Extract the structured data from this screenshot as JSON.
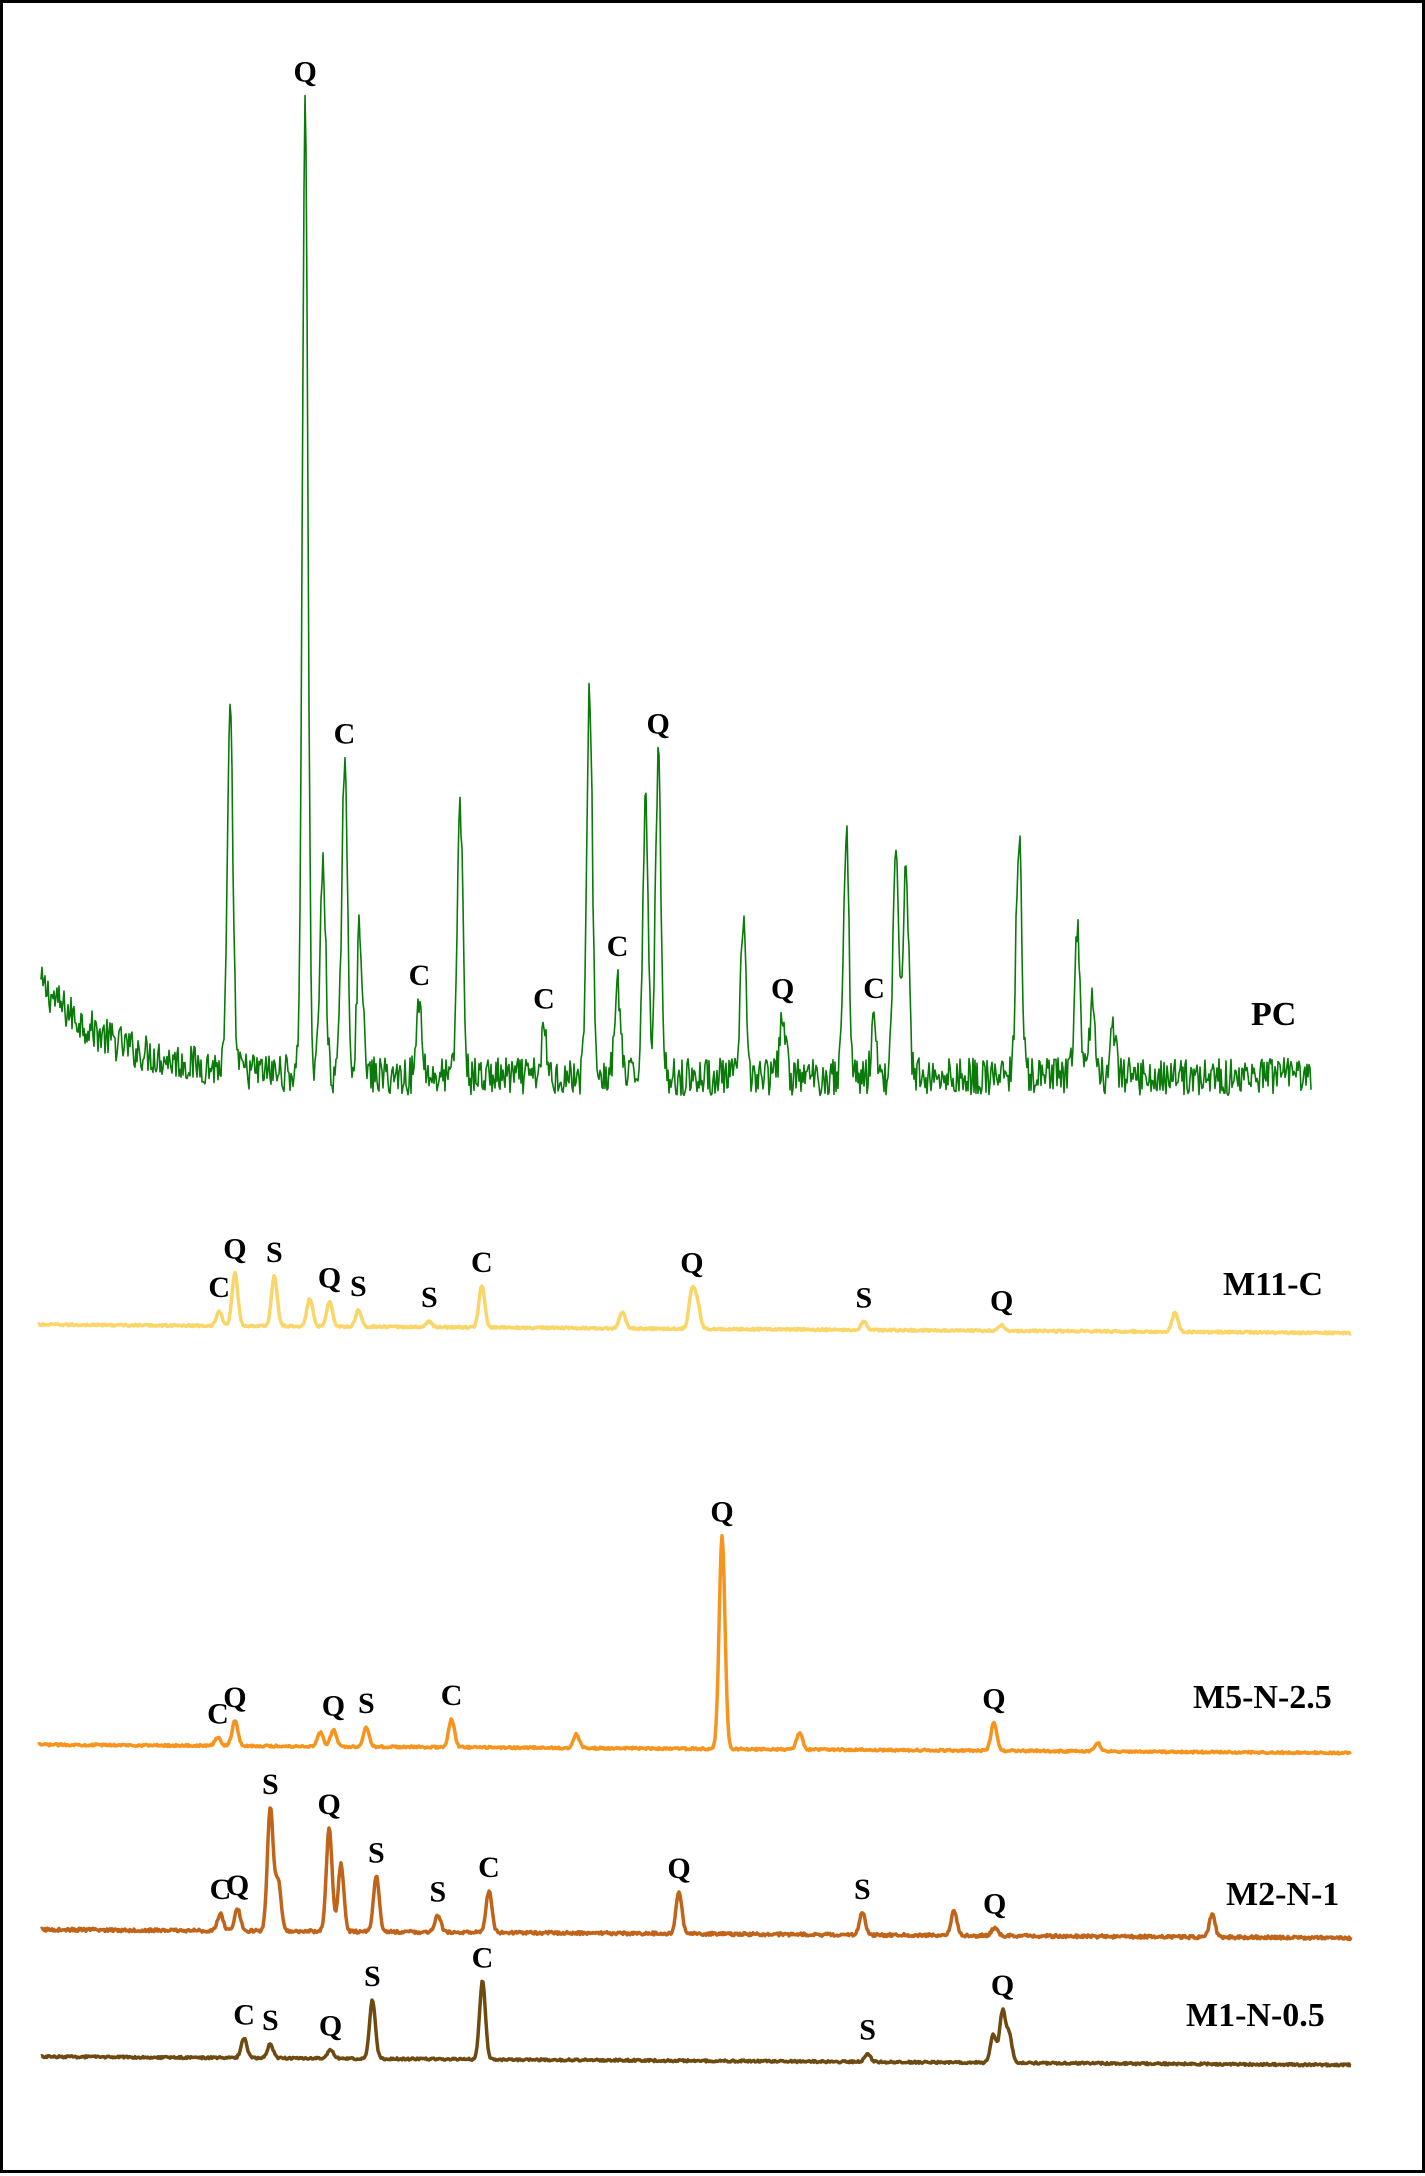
{
  "chart_data": {
    "type": "line",
    "title": "",
    "xlabel": "",
    "ylabel": "",
    "grid": false,
    "legend": "none",
    "x_units": "relative position across the pattern (0-1); no axis is printed",
    "y_units": "relative intensity above each trace's own baseline (0-1); no axis is printed",
    "series": [
      {
        "name": "PC",
        "color": "#0a7a0a",
        "background": "decaying",
        "noise": 0.5,
        "peaks": [
          {
            "x": 0.149,
            "h": 0.83,
            "label": ""
          },
          {
            "x": 0.208,
            "h": 2.3,
            "label": "Q"
          },
          {
            "x": 0.222,
            "h": 0.5,
            "label": ""
          },
          {
            "x": 0.239,
            "h": 0.75,
            "label": "C"
          },
          {
            "x": 0.251,
            "h": 0.35,
            "label": ""
          },
          {
            "x": 0.298,
            "h": 0.18,
            "label": "C"
          },
          {
            "x": 0.33,
            "h": 0.65,
            "label": ""
          },
          {
            "x": 0.396,
            "h": 0.1,
            "label": "C"
          },
          {
            "x": 0.432,
            "h": 0.92,
            "label": ""
          },
          {
            "x": 0.454,
            "h": 0.22,
            "label": "C"
          },
          {
            "x": 0.476,
            "h": 0.65,
            "label": ""
          },
          {
            "x": 0.486,
            "h": 0.75,
            "label": "Q"
          },
          {
            "x": 0.553,
            "h": 0.35,
            "label": ""
          },
          {
            "x": 0.584,
            "h": 0.15,
            "label": "Q"
          },
          {
            "x": 0.634,
            "h": 0.58,
            "label": ""
          },
          {
            "x": 0.656,
            "h": 0.12,
            "label": "C"
          },
          {
            "x": 0.673,
            "h": 0.55,
            "label": ""
          },
          {
            "x": 0.681,
            "h": 0.52,
            "label": ""
          },
          {
            "x": 0.77,
            "h": 0.58,
            "label": ""
          },
          {
            "x": 0.816,
            "h": 0.35,
            "label": ""
          },
          {
            "x": 0.828,
            "h": 0.18,
            "label": ""
          },
          {
            "x": 0.844,
            "h": 0.12,
            "label": ""
          }
        ]
      },
      {
        "name": "M11-C",
        "color": "#fad669",
        "background": "flat",
        "noise": 0.04,
        "peaks": [
          {
            "x": 0.138,
            "h": 0.05,
            "label": "C"
          },
          {
            "x": 0.15,
            "h": 0.19,
            "label": "Q"
          },
          {
            "x": 0.18,
            "h": 0.18,
            "label": "S"
          },
          {
            "x": 0.207,
            "h": 0.1,
            "label": ""
          },
          {
            "x": 0.222,
            "h": 0.09,
            "label": "Q"
          },
          {
            "x": 0.244,
            "h": 0.06,
            "label": "S"
          },
          {
            "x": 0.298,
            "h": 0.02,
            "label": "S"
          },
          {
            "x": 0.338,
            "h": 0.15,
            "label": "C"
          },
          {
            "x": 0.445,
            "h": 0.06,
            "label": ""
          },
          {
            "x": 0.498,
            "h": 0.13,
            "label": "Q"
          },
          {
            "x": 0.502,
            "h": 0.09,
            "label": ""
          },
          {
            "x": 0.629,
            "h": 0.03,
            "label": "S"
          },
          {
            "x": 0.734,
            "h": 0.02,
            "label": "Q"
          },
          {
            "x": 0.866,
            "h": 0.07,
            "label": ""
          }
        ]
      },
      {
        "name": "M5-N-2.5",
        "color": "#f7941d",
        "background": "flat",
        "noise": 0.04,
        "peaks": [
          {
            "x": 0.137,
            "h": 0.03,
            "label": "C"
          },
          {
            "x": 0.15,
            "h": 0.09,
            "label": "Q"
          },
          {
            "x": 0.215,
            "h": 0.05,
            "label": ""
          },
          {
            "x": 0.225,
            "h": 0.06,
            "label": "Q"
          },
          {
            "x": 0.25,
            "h": 0.07,
            "label": "S"
          },
          {
            "x": 0.315,
            "h": 0.1,
            "label": "C"
          },
          {
            "x": 0.41,
            "h": 0.05,
            "label": ""
          },
          {
            "x": 0.521,
            "h": 0.76,
            "label": "Q"
          },
          {
            "x": 0.58,
            "h": 0.06,
            "label": ""
          },
          {
            "x": 0.728,
            "h": 0.1,
            "label": "Q"
          },
          {
            "x": 0.807,
            "h": 0.03,
            "label": ""
          }
        ]
      },
      {
        "name": "M2-N-1",
        "color": "#c0641a",
        "background": "flat",
        "noise": 0.06,
        "peaks": [
          {
            "x": 0.137,
            "h": 0.06,
            "label": "C"
          },
          {
            "x": 0.15,
            "h": 0.08,
            "label": "Q"
          },
          {
            "x": 0.175,
            "h": 0.44,
            "label": "S"
          },
          {
            "x": 0.181,
            "h": 0.18,
            "label": ""
          },
          {
            "x": 0.22,
            "h": 0.37,
            "label": "Q"
          },
          {
            "x": 0.229,
            "h": 0.24,
            "label": ""
          },
          {
            "x": 0.256,
            "h": 0.2,
            "label": "S"
          },
          {
            "x": 0.303,
            "h": 0.06,
            "label": "S"
          },
          {
            "x": 0.342,
            "h": 0.15,
            "label": "C"
          },
          {
            "x": 0.487,
            "h": 0.15,
            "label": "Q"
          },
          {
            "x": 0.627,
            "h": 0.08,
            "label": "S"
          },
          {
            "x": 0.697,
            "h": 0.09,
            "label": ""
          },
          {
            "x": 0.728,
            "h": 0.03,
            "label": "Q"
          },
          {
            "x": 0.894,
            "h": 0.08,
            "label": ""
          }
        ]
      },
      {
        "name": "M1-N-0.5",
        "color": "#6e4a10",
        "background": "flat",
        "noise": 0.04,
        "peaks": [
          {
            "x": 0.155,
            "h": 0.07,
            "label": "C"
          },
          {
            "x": 0.175,
            "h": 0.05,
            "label": "S"
          },
          {
            "x": 0.221,
            "h": 0.03,
            "label": "Q"
          },
          {
            "x": 0.253,
            "h": 0.21,
            "label": "S"
          },
          {
            "x": 0.337,
            "h": 0.28,
            "label": "C"
          },
          {
            "x": 0.631,
            "h": 0.03,
            "label": "S"
          },
          {
            "x": 0.727,
            "h": 0.1,
            "label": ""
          },
          {
            "x": 0.734,
            "h": 0.18,
            "label": "Q"
          },
          {
            "x": 0.739,
            "h": 0.1,
            "label": ""
          }
        ]
      }
    ]
  }
}
